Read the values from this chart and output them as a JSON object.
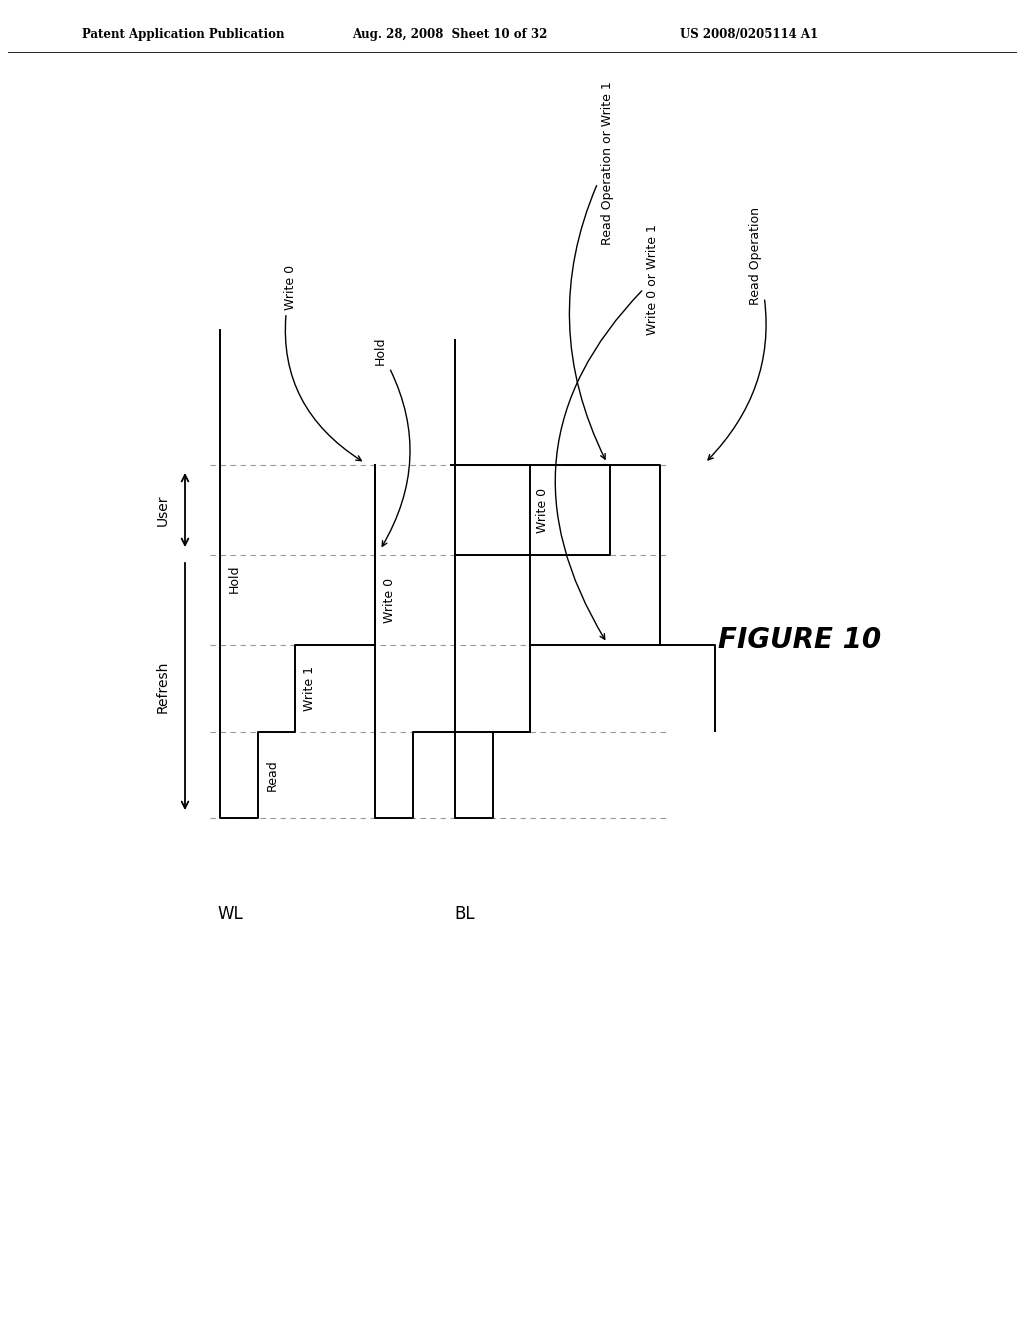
{
  "bg_color": "#ffffff",
  "text_color": "#000000",
  "header_left": "Patent Application Publication",
  "header_center": "Aug. 28, 2008  Sheet 10 of 32",
  "header_right": "US 2008/0205114 A1",
  "figure_label": "FIGURE 10",
  "wl_label": "WL",
  "bl_label": "BL",
  "user_label": "User",
  "refresh_label": "Refresh",
  "phase_labels": [
    "Hold",
    "Read",
    "Write 1",
    "Write 0"
  ],
  "bl_mid_label": "Write 0",
  "top_annots": [
    {
      "text": "Write 0",
      "arrow_rad": 0.4
    },
    {
      "text": "Hold",
      "arrow_rad": -0.3
    },
    {
      "text": "Read Operation or Write 1",
      "arrow_rad": 0.3
    },
    {
      "text": "Write 0 or Write 1",
      "arrow_rad": 0.35
    },
    {
      "text": "Read Operation",
      "arrow_rad": -0.3
    }
  ],
  "lw": 1.4,
  "dline_color": "#999999"
}
